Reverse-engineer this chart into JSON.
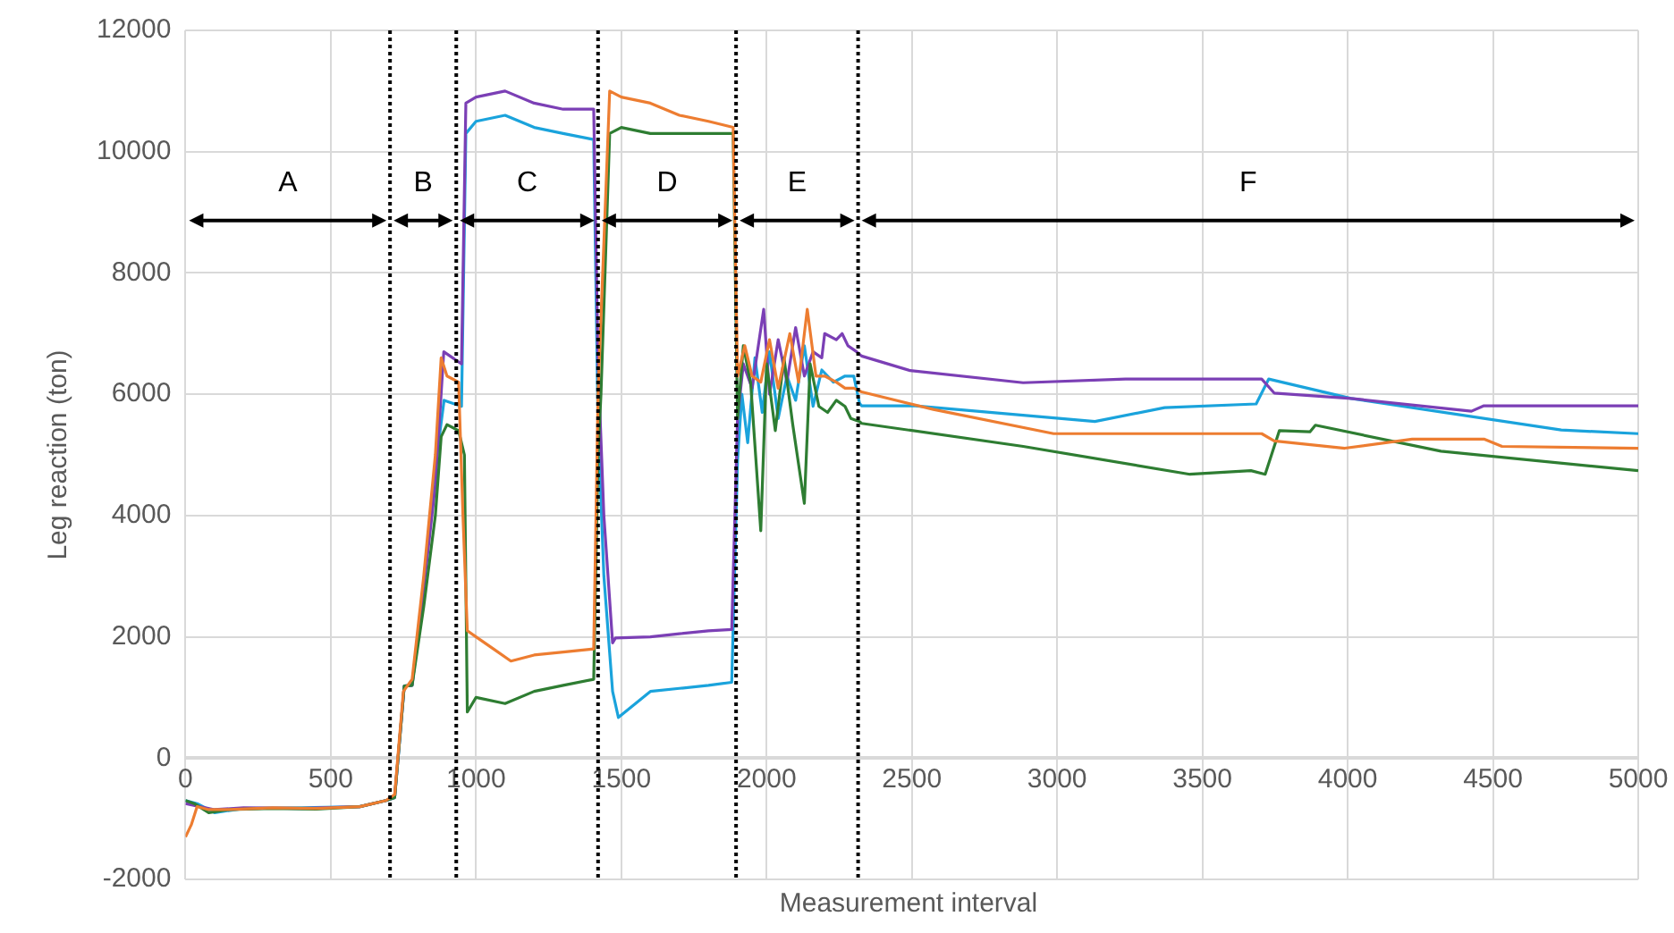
{
  "chart_data": {
    "type": "line",
    "xlabel": "Measurement interval",
    "ylabel": "Leg reaction (ton)",
    "xlim": [
      0,
      5000
    ],
    "xticks": [
      0,
      500,
      1000,
      1500,
      2000,
      2500,
      3000,
      3500,
      4000,
      4500,
      5000
    ],
    "ylim": [
      -2000,
      12000
    ],
    "yticks": [
      -2000,
      0,
      2000,
      4000,
      6000,
      8000,
      10000,
      12000
    ],
    "grid": true,
    "legend": false,
    "marker": "none",
    "line_style": "solid",
    "ref_lines": [
      {
        "axis": "x",
        "value": 704,
        "color": "#000000",
        "line_style": "dotted"
      },
      {
        "axis": "x",
        "value": 932,
        "color": "#000000",
        "line_style": "dotted"
      },
      {
        "axis": "x",
        "value": 1420,
        "color": "#000000",
        "line_style": "dotted"
      },
      {
        "axis": "x",
        "value": 1895,
        "color": "#000000",
        "line_style": "dotted"
      },
      {
        "axis": "x",
        "value": 2315,
        "color": "#000000",
        "line_style": "dotted"
      }
    ],
    "annotations": [
      "A",
      "B",
      "C",
      "D",
      "E",
      "F"
    ],
    "series": [
      {
        "color": "#ed7d31",
        "x": [
          0,
          20,
          40,
          80,
          150,
          300,
          450,
          600,
          690,
          720,
          750,
          780,
          820,
          860,
          880,
          900,
          940,
          955,
          970,
          1000,
          1060,
          1120,
          1200,
          1300,
          1405,
          1420,
          1440,
          1460,
          1500,
          1600,
          1700,
          1800,
          1885,
          1900,
          1925,
          1950,
          1980,
          2010,
          2040,
          2080,
          2110,
          2140,
          2170,
          2200,
          2240,
          2270,
          2300,
          2327,
          2574,
          2988,
          3704,
          3747,
          3990,
          4222,
          4469,
          4531,
          5000
        ],
        "values": [
          -1300,
          -1100,
          -800,
          -850,
          -850,
          -820,
          -830,
          -800,
          -700,
          -600,
          1100,
          1300,
          3000,
          5000,
          6600,
          6300,
          6200,
          4000,
          2100,
          2000,
          1800,
          1600,
          1700,
          1750,
          1800,
          6000,
          8500,
          11000,
          10900,
          10800,
          10600,
          10500,
          10400,
          6300,
          6800,
          6300,
          6200,
          6900,
          6100,
          7000,
          6200,
          7400,
          6300,
          6300,
          6200,
          6100,
          6100,
          6040,
          5750,
          5350,
          5350,
          5230,
          5110,
          5260,
          5260,
          5140,
          5110
        ]
      },
      {
        "color": "#2e7d32",
        "x": [
          0,
          30,
          80,
          150,
          300,
          450,
          600,
          690,
          720,
          753,
          780,
          820,
          860,
          880,
          900,
          940,
          960,
          970,
          1000,
          1100,
          1200,
          1300,
          1405,
          1420,
          1430,
          1460,
          1500,
          1600,
          1700,
          1800,
          1885,
          1900,
          1920,
          1945,
          1980,
          2000,
          2030,
          2060,
          2090,
          2130,
          2150,
          2180,
          2210,
          2240,
          2270,
          2290,
          2320,
          2327,
          2883,
          3457,
          3667,
          3716,
          3765,
          3870,
          3889,
          4321,
          5000
        ],
        "values": [
          -700,
          -750,
          -900,
          -850,
          -830,
          -840,
          -800,
          -700,
          -650,
          1190,
          1200,
          2500,
          4000,
          5300,
          5500,
          5400,
          5000,
          760,
          1000,
          900,
          1100,
          1200,
          1300,
          5000,
          6000,
          10300,
          10400,
          10300,
          10300,
          10300,
          10300,
          5600,
          6800,
          6200,
          3750,
          6500,
          5400,
          6600,
          5500,
          4200,
          6500,
          5800,
          5700,
          5900,
          5800,
          5600,
          5550,
          5520,
          5140,
          4680,
          4740,
          4680,
          5400,
          5380,
          5490,
          5060,
          4740
        ]
      },
      {
        "color": "#7b3fb5",
        "x": [
          0,
          50,
          100,
          200,
          400,
          600,
          690,
          720,
          753,
          780,
          820,
          860,
          889,
          950,
          965,
          1000,
          1100,
          1200,
          1300,
          1405,
          1420,
          1440,
          1470,
          1480,
          1600,
          1700,
          1800,
          1880,
          1900,
          1920,
          1950,
          1990,
          2010,
          2040,
          2070,
          2100,
          2130,
          2160,
          2190,
          2200,
          2240,
          2260,
          2280,
          2310,
          2327,
          2494,
          2883,
          3235,
          3704,
          3747,
          4012,
          4426,
          4469,
          5000
        ],
        "values": [
          -750,
          -800,
          -850,
          -820,
          -830,
          -800,
          -700,
          -650,
          1190,
          1200,
          2800,
          4500,
          6700,
          6500,
          10800,
          10900,
          11000,
          10800,
          10700,
          10700,
          6500,
          4000,
          1900,
          1980,
          2000,
          2050,
          2100,
          2120,
          5600,
          6500,
          6100,
          7400,
          6000,
          6900,
          6200,
          7100,
          6300,
          6700,
          6600,
          7000,
          6900,
          7000,
          6800,
          6700,
          6630,
          6390,
          6190,
          6250,
          6250,
          6020,
          5930,
          5720,
          5810,
          5810
        ]
      },
      {
        "color": "#1aa3dc",
        "x": [
          0,
          40,
          100,
          200,
          400,
          600,
          690,
          720,
          753,
          780,
          820,
          860,
          890,
          950,
          965,
          1000,
          1100,
          1200,
          1300,
          1405,
          1420,
          1440,
          1470,
          1490,
          1600,
          1700,
          1800,
          1880,
          1900,
          1915,
          1935,
          1960,
          1985,
          2010,
          2040,
          2070,
          2100,
          2130,
          2160,
          2190,
          2230,
          2270,
          2300,
          2320,
          2327,
          2512,
          3130,
          3370,
          3685,
          3728,
          4012,
          4735,
          5000
        ],
        "values": [
          -700,
          -750,
          -900,
          -830,
          -820,
          -800,
          -700,
          -650,
          1190,
          1200,
          2900,
          4800,
          5900,
          5800,
          10300,
          10500,
          10600,
          10400,
          10300,
          10200,
          5500,
          3000,
          1100,
          670,
          1100,
          1150,
          1200,
          1250,
          4900,
          6000,
          5200,
          6600,
          5700,
          6700,
          5600,
          6300,
          5900,
          6800,
          5800,
          6400,
          6200,
          6300,
          6300,
          5850,
          5810,
          5810,
          5550,
          5780,
          5840,
          6250,
          5930,
          5410,
          5350
        ]
      }
    ]
  }
}
